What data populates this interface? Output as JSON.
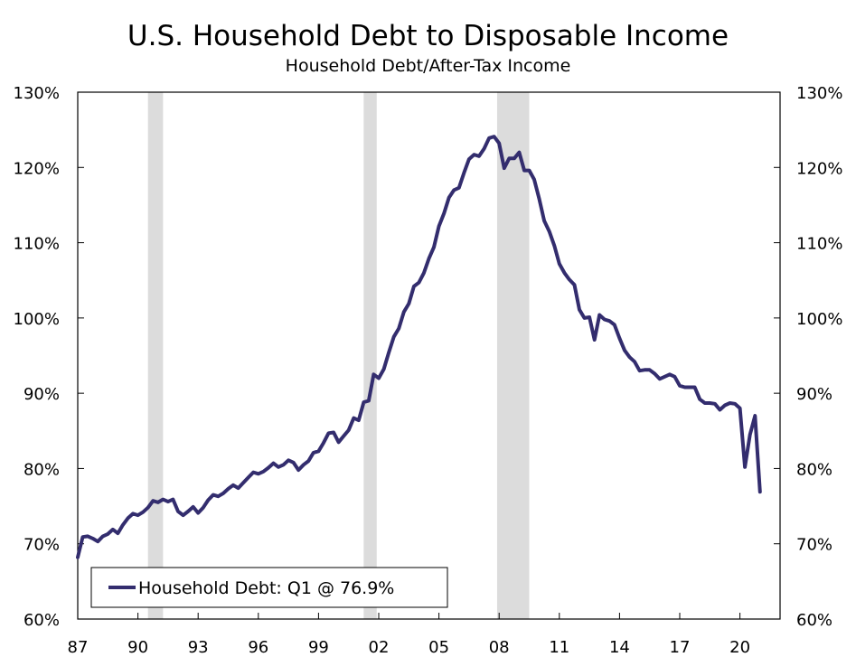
{
  "chart_data": {
    "type": "line",
    "title": "U.S. Household Debt to Disposable Income",
    "subtitle": "Household Debt/After-Tax Income",
    "xlabel": "",
    "ylabel": "",
    "ylim": [
      60,
      130
    ],
    "xlim": [
      1987.0,
      2022.0
    ],
    "y_ticks": [
      60,
      70,
      80,
      90,
      100,
      110,
      120,
      130
    ],
    "y_tick_labels": [
      "60%",
      "70%",
      "80%",
      "90%",
      "100%",
      "110%",
      "120%",
      "130%"
    ],
    "x_ticks": [
      1987,
      1990,
      1993,
      1996,
      1999,
      2002,
      2005,
      2008,
      2011,
      2014,
      2017,
      2020
    ],
    "x_tick_labels": [
      "87",
      "90",
      "93",
      "96",
      "99",
      "02",
      "05",
      "08",
      "11",
      "14",
      "17",
      "20"
    ],
    "grid": false,
    "recessions": [
      [
        1990.5,
        1991.25
      ],
      [
        2001.25,
        2001.9
      ],
      [
        2007.9,
        2009.5
      ]
    ],
    "legend": {
      "position": "bottom-left",
      "label": "Household Debt: Q1 @ 76.9%"
    },
    "colors": {
      "line": "#332d6e",
      "recession": "#dcdcdc",
      "axis": "#000000"
    },
    "series": [
      {
        "name": "Household Debt",
        "x": [
          1987.0,
          1987.25,
          1987.5,
          1987.75,
          1988.0,
          1988.25,
          1988.5,
          1988.75,
          1989.0,
          1989.25,
          1989.5,
          1989.75,
          1990.0,
          1990.25,
          1990.5,
          1990.75,
          1991.0,
          1991.25,
          1991.5,
          1991.75,
          1992.0,
          1992.25,
          1992.5,
          1992.75,
          1993.0,
          1993.25,
          1993.5,
          1993.75,
          1994.0,
          1994.25,
          1994.5,
          1994.75,
          1995.0,
          1995.25,
          1995.5,
          1995.75,
          1996.0,
          1996.25,
          1996.5,
          1996.75,
          1997.0,
          1997.25,
          1997.5,
          1997.75,
          1998.0,
          1998.25,
          1998.5,
          1998.75,
          1999.0,
          1999.25,
          1999.5,
          1999.75,
          2000.0,
          2000.25,
          2000.5,
          2000.75,
          2001.0,
          2001.25,
          2001.5,
          2001.75,
          2002.0,
          2002.25,
          2002.5,
          2002.75,
          2003.0,
          2003.25,
          2003.5,
          2003.75,
          2004.0,
          2004.25,
          2004.5,
          2004.75,
          2005.0,
          2005.25,
          2005.5,
          2005.75,
          2006.0,
          2006.25,
          2006.5,
          2006.75,
          2007.0,
          2007.25,
          2007.5,
          2007.75,
          2008.0,
          2008.25,
          2008.5,
          2008.75,
          2009.0,
          2009.25,
          2009.5,
          2009.75,
          2010.0,
          2010.25,
          2010.5,
          2010.75,
          2011.0,
          2011.25,
          2011.5,
          2011.75,
          2012.0,
          2012.25,
          2012.5,
          2012.75,
          2013.0,
          2013.25,
          2013.5,
          2013.75,
          2014.0,
          2014.25,
          2014.5,
          2014.75,
          2015.0,
          2015.25,
          2015.5,
          2015.75,
          2016.0,
          2016.25,
          2016.5,
          2016.75,
          2017.0,
          2017.25,
          2017.5,
          2017.75,
          2018.0,
          2018.25,
          2018.5,
          2018.75,
          2019.0,
          2019.25,
          2019.5,
          2019.75,
          2020.0,
          2020.25,
          2020.5,
          2020.75,
          2021.0
        ],
        "values": [
          68.2,
          70.9,
          71.0,
          70.7,
          70.3,
          71.0,
          71.3,
          71.9,
          71.4,
          72.5,
          73.4,
          74.0,
          73.8,
          74.2,
          74.8,
          75.7,
          75.5,
          75.9,
          75.6,
          75.9,
          74.3,
          73.8,
          74.3,
          74.9,
          74.1,
          74.8,
          75.8,
          76.5,
          76.3,
          76.7,
          77.3,
          77.8,
          77.4,
          78.1,
          78.8,
          79.5,
          79.3,
          79.6,
          80.1,
          80.7,
          80.2,
          80.5,
          81.1,
          80.8,
          79.8,
          80.5,
          81.0,
          82.1,
          82.3,
          83.4,
          84.7,
          84.8,
          83.5,
          84.3,
          85.1,
          86.7,
          86.4,
          88.8,
          89.0,
          92.5,
          92.0,
          93.2,
          95.4,
          97.5,
          98.6,
          100.8,
          101.9,
          104.2,
          104.7,
          106.0,
          107.9,
          109.4,
          112.2,
          113.9,
          116.0,
          117.0,
          117.3,
          119.3,
          121.1,
          121.7,
          121.5,
          122.5,
          123.9,
          124.1,
          123.2,
          119.9,
          121.2,
          121.2,
          122.0,
          119.6,
          119.6,
          118.4,
          115.8,
          112.9,
          111.5,
          109.6,
          107.2,
          106.0,
          105.1,
          104.4,
          101.1,
          100.0,
          100.1,
          97.1,
          100.4,
          99.8,
          99.6,
          99.1,
          97.3,
          95.7,
          94.8,
          94.2,
          93.0,
          93.1,
          93.1,
          92.6,
          91.9,
          92.2,
          92.5,
          92.2,
          91.0,
          90.8,
          90.8,
          90.8,
          89.2,
          88.7,
          88.7,
          88.6,
          87.8,
          88.4,
          88.7,
          88.6,
          88.0,
          80.2,
          84.5,
          87.0,
          76.9
        ]
      }
    ]
  }
}
